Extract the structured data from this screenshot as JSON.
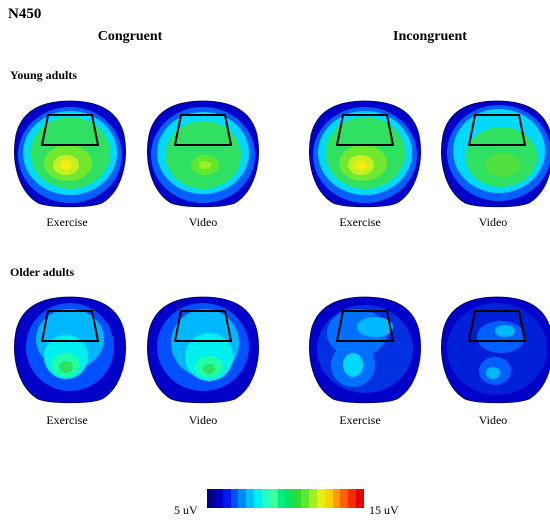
{
  "title": "N450",
  "columns": [
    "Congruent",
    "Incongruent"
  ],
  "groups": [
    {
      "name": "Young adults",
      "maps": [
        {
          "condition": "Exercise",
          "pattern": "strong-center"
        },
        {
          "condition": "Video",
          "pattern": "mild-center"
        },
        {
          "condition": "Exercise",
          "pattern": "strong-center"
        },
        {
          "condition": "Video",
          "pattern": "mild-wide"
        }
      ]
    },
    {
      "name": "Older adults",
      "maps": [
        {
          "condition": "Exercise",
          "pattern": "older-left"
        },
        {
          "condition": "Video",
          "pattern": "older-right"
        },
        {
          "condition": "Exercise",
          "pattern": "weak-diagonal"
        },
        {
          "condition": "Video",
          "pattern": "weak-patchy"
        }
      ]
    }
  ],
  "colorbar": {
    "min_label": "5 uV",
    "max_label": "15 uV",
    "colors": [
      "#00008f",
      "#0000c8",
      "#0018f0",
      "#0050ff",
      "#0088ff",
      "#00c0ff",
      "#00f0f0",
      "#20ffc8",
      "#40ffa0",
      "#00ee80",
      "#10e060",
      "#30dc30",
      "#60e830",
      "#a0f020",
      "#e8f010",
      "#ffd000",
      "#ff9800",
      "#ff6000",
      "#ff2800",
      "#e00000"
    ]
  }
}
